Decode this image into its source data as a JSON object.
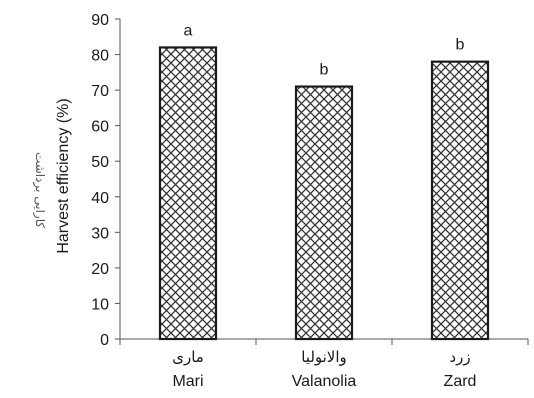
{
  "chart_data": {
    "type": "bar",
    "categories": [
      {
        "label_fa": "ماری",
        "label_en": "Mari"
      },
      {
        "label_fa": "والانولیا",
        "label_en": "Valanolia"
      },
      {
        "label_fa": "زرد",
        "label_en": "Zard"
      }
    ],
    "values": [
      82,
      71,
      78
    ],
    "significance": [
      "a",
      "b",
      "b"
    ],
    "ylabel": "Harvest efficiency (%)",
    "ylabel_fa": "کارایی برداشت",
    "ylim": [
      0,
      90
    ],
    "yticks": [
      0,
      10,
      20,
      30,
      40,
      50,
      60,
      70,
      80,
      90
    ],
    "grid": false,
    "legend": "none",
    "bar_fill": "crosshatch",
    "colors": {
      "bar_stroke": "#1a1a1a",
      "pattern": "#333333",
      "axis": "#555555"
    }
  }
}
